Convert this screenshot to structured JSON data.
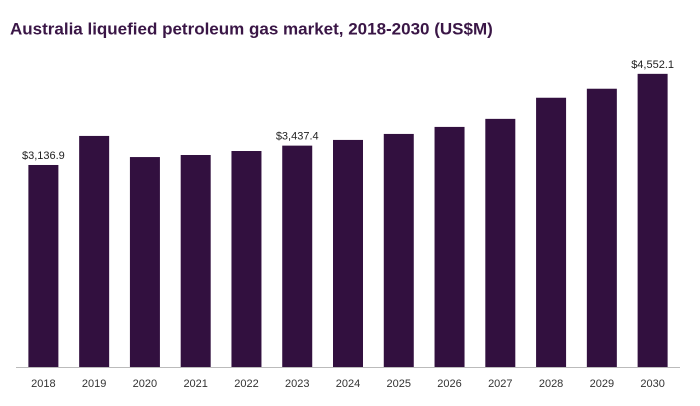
{
  "chart_data": {
    "type": "bar",
    "title": "Australia liquefied petroleum gas market, 2018-2030 (US$M)",
    "categories": [
      "2018",
      "2019",
      "2020",
      "2021",
      "2022",
      "2023",
      "2024",
      "2025",
      "2026",
      "2027",
      "2028",
      "2029",
      "2030"
    ],
    "values": [
      3136.9,
      3588,
      3260,
      3292,
      3354,
      3437.4,
      3526,
      3619,
      3728,
      3853,
      4181,
      4321,
      4552.1
    ],
    "value_labels": [
      "$3,136.9",
      null,
      null,
      null,
      null,
      "$3,437.4",
      null,
      null,
      null,
      null,
      null,
      null,
      "$4,552.1"
    ],
    "color": "#32103f",
    "ylim": [
      0,
      5000
    ]
  }
}
